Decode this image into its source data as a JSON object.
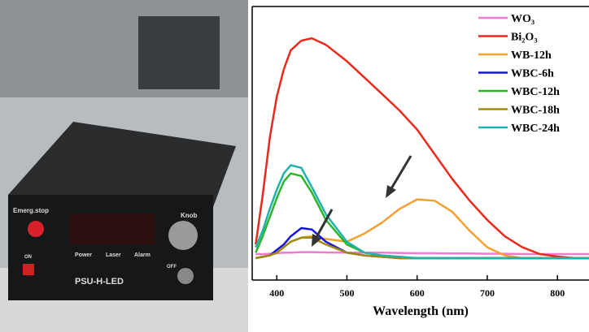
{
  "photo": {
    "labels": [
      "Emerg.stop",
      "Knob",
      "Power",
      "Laser",
      "Alarm",
      "PSU-H-LED",
      "ON",
      "OFF"
    ]
  },
  "chart_data": {
    "type": "line",
    "xlabel": "Wavelength (nm)",
    "x": [
      370,
      380,
      390,
      400,
      410,
      420,
      435,
      450,
      470,
      500,
      525,
      550,
      575,
      600,
      625,
      650,
      675,
      700,
      725,
      750,
      775,
      800,
      825,
      845
    ],
    "xlim": [
      365,
      845
    ],
    "xticks": [
      400,
      500,
      600,
      700,
      800
    ],
    "ylim": [
      0,
      100
    ],
    "legend": "upper right",
    "series": [
      {
        "name": "WO₃",
        "color": "#f07ad0",
        "values": [
          9.5,
          9.5,
          9.6,
          9.8,
          10,
          10,
          10.2,
          10.2,
          10.1,
          10,
          10,
          10,
          9.9,
          9.8,
          9.8,
          9.7,
          9.7,
          9.6,
          9.6,
          9.5,
          9.5,
          9.5,
          9.5,
          9.5
        ]
      },
      {
        "name": "Bi₂O₃",
        "color": "#e8291c",
        "values": [
          13,
          31,
          52,
          67,
          77,
          84,
          87.5,
          88.4,
          86,
          80,
          74,
          68,
          62,
          55,
          46,
          37,
          29,
          22,
          16,
          12,
          9.5,
          8.6,
          8,
          8
        ]
      },
      {
        "name": "WB-12h",
        "color": "#f5a030",
        "values": [
          8,
          8.5,
          9,
          10,
          12,
          14,
          15.5,
          16,
          15,
          14,
          17,
          21,
          26,
          29.5,
          29,
          25,
          18,
          12,
          9,
          8,
          8,
          8,
          8,
          8
        ]
      },
      {
        "name": "WBC-6h",
        "color": "#1414e0",
        "values": [
          8,
          8.5,
          9,
          11,
          13,
          16,
          19,
          18.5,
          14,
          10,
          9,
          8.5,
          8,
          8,
          8,
          8,
          8,
          8,
          8,
          8,
          8,
          8,
          8,
          8
        ]
      },
      {
        "name": "WBC-12h",
        "color": "#2ab52a",
        "values": [
          10,
          16,
          23,
          30,
          36,
          39,
          38,
          32,
          22,
          13,
          10,
          9,
          8.5,
          8,
          8,
          8,
          8,
          8,
          8,
          8,
          8,
          8,
          8,
          8
        ]
      },
      {
        "name": "WBC-18h",
        "color": "#a08a10",
        "values": [
          8,
          8.5,
          9,
          10,
          12,
          14,
          15.5,
          15.5,
          13,
          10,
          9,
          8.5,
          8,
          8,
          8,
          8,
          8,
          8,
          8,
          8,
          8,
          8,
          8,
          8
        ]
      },
      {
        "name": "WBC-24h",
        "color": "#20b2aa",
        "values": [
          12,
          18,
          26,
          33,
          39,
          42,
          41,
          34,
          24,
          14,
          10,
          9,
          8.5,
          8,
          8,
          8,
          8,
          8,
          8,
          8,
          8,
          8,
          8,
          8
        ]
      }
    ]
  }
}
